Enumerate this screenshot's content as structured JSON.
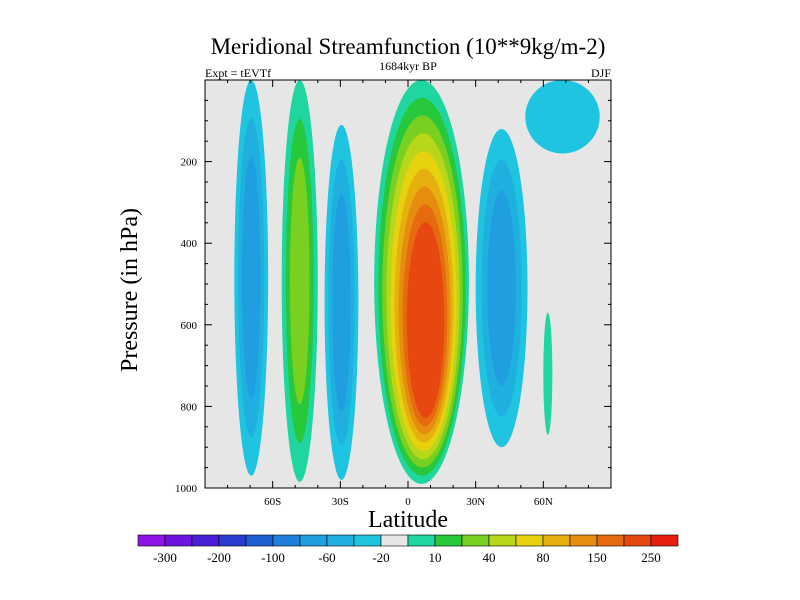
{
  "chart_data": {
    "type": "contour",
    "title": "Meridional Streamfunction (10**9kg/m-2)",
    "subtitle_left": "Expt = tEVTf",
    "subtitle_center": "1684kyr BP",
    "subtitle_right": "DJF",
    "xlabel": "Latitude",
    "ylabel": "Pressure (in hPa)",
    "xlim": [
      -90,
      90
    ],
    "ylim": [
      1000,
      0
    ],
    "xticks": [
      {
        "value": -60,
        "label": "60S"
      },
      {
        "value": -30,
        "label": "30S"
      },
      {
        "value": 0,
        "label": "0"
      },
      {
        "value": 30,
        "label": "30N"
      },
      {
        "value": 60,
        "label": "60N"
      }
    ],
    "yticks": [
      {
        "value": 200,
        "label": "200"
      },
      {
        "value": 400,
        "label": "400"
      },
      {
        "value": 600,
        "label": "600"
      },
      {
        "value": 800,
        "label": "800"
      },
      {
        "value": 1000,
        "label": "1000"
      }
    ],
    "colorbar": {
      "colors": [
        "#8f14e6",
        "#6b14e0",
        "#4a1ed6",
        "#2a3dd0",
        "#1f5fd4",
        "#1f80dc",
        "#1f9ee0",
        "#1fb0e0",
        "#1fc4e0",
        "#e6e6e6",
        "#1fd6a0",
        "#27c83c",
        "#7ad020",
        "#b8d61a",
        "#e6d20f",
        "#e6b00f",
        "#e68c0f",
        "#e66a0f",
        "#e6480f",
        "#e61f0f"
      ],
      "tick_labels": [
        "-300",
        "-200",
        "-100",
        "-60",
        "-20",
        "10",
        "40",
        "80",
        "150",
        "250"
      ]
    },
    "features": [
      {
        "name": "southern-polar-cell",
        "sign": "negative",
        "lat_range": [
          -77,
          -62
        ],
        "pressure_range": [
          0,
          970
        ],
        "peak_value": -60
      },
      {
        "name": "southern-ferrel-cell",
        "sign": "positive",
        "lat_range": [
          -56,
          -40
        ],
        "pressure_range": [
          0,
          985
        ],
        "peak_value": 40
      },
      {
        "name": "southern-subtropical-negative",
        "sign": "negative",
        "lat_range": [
          -37,
          -22
        ],
        "pressure_range": [
          110,
          980
        ],
        "peak_value": -60
      },
      {
        "name": "hadley-cell",
        "sign": "positive",
        "lat_range": [
          -15,
          27
        ],
        "pressure_range": [
          0,
          990
        ],
        "peak_value": 250,
        "peak_lat": 8,
        "peak_pressure": 600
      },
      {
        "name": "northern-negative-cell",
        "sign": "negative",
        "lat_range": [
          30,
          53
        ],
        "pressure_range": [
          120,
          900
        ],
        "peak_value": -60
      },
      {
        "name": "northern-positive-cell",
        "sign": "positive",
        "lat_range": [
          60,
          64
        ],
        "pressure_range": [
          570,
          870
        ],
        "peak_value": 10
      },
      {
        "name": "northern-polar-negative",
        "sign": "negative",
        "lat_range": [
          52,
          85
        ],
        "pressure_range": [
          0,
          180
        ],
        "peak_value": -20
      }
    ]
  }
}
